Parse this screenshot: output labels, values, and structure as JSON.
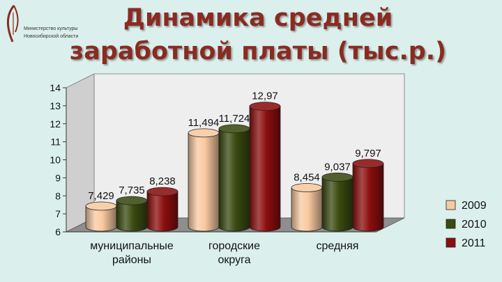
{
  "header": {
    "title_line1": "Динамика средней",
    "title_line2": "заработной платы (тыс.р.)"
  },
  "logo": {
    "org_line1": "Министерство культуры",
    "org_line2": "Новосибирской области"
  },
  "chart_data": {
    "type": "bar",
    "title": "Динамика средней заработной платы (тыс.р.)",
    "categories": [
      [
        "муниципальные",
        "районы"
      ],
      [
        "городские",
        "округа"
      ],
      [
        "средняя"
      ]
    ],
    "series": [
      {
        "name": "2009",
        "values": [
          7.429,
          11.494,
          8.454
        ],
        "labels": [
          "7,429",
          "11,494",
          "8,454"
        ],
        "color": "#f8c9a0"
      },
      {
        "name": "2010",
        "values": [
          7.735,
          11.724,
          9.037
        ],
        "labels": [
          "7,735",
          "11,724",
          "9,037"
        ],
        "color": "#3a4a10"
      },
      {
        "name": "2011",
        "values": [
          8.238,
          12.97,
          9.797
        ],
        "labels": [
          "8,238",
          "12,97",
          "9,797"
        ],
        "color": "#8c0e0e"
      }
    ],
    "yticks": [
      "6",
      "7",
      "8",
      "9",
      "10",
      "11",
      "12",
      "13",
      "14"
    ],
    "ylim": [
      6,
      14
    ],
    "grid": false,
    "legend": "right",
    "style": "3d-cylinder"
  }
}
